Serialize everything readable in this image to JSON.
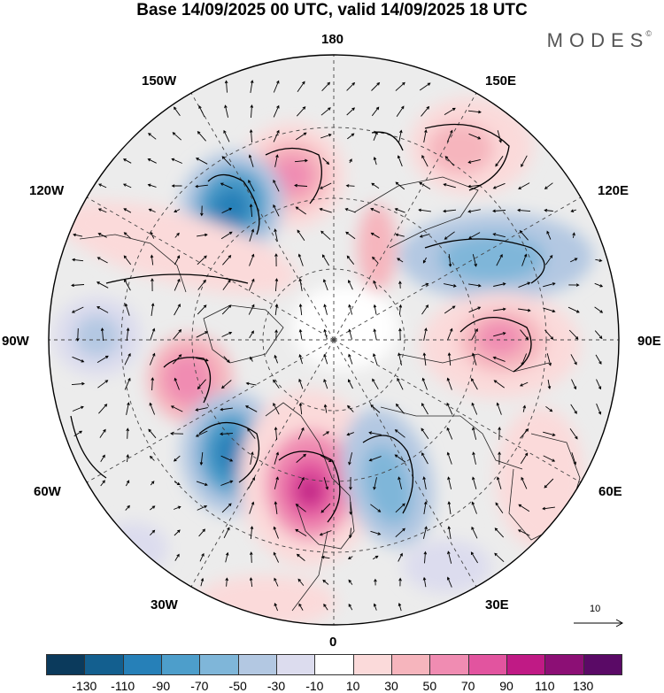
{
  "title": "Base 14/09/2025 00 UTC, valid 14/09/2025 18 UTC",
  "brand": "MODES",
  "brand_mark": "©",
  "longitude_labels": {
    "top": "180",
    "bottom": "0",
    "left": "90W",
    "right": "90E",
    "w150": "150W",
    "e150": "150E",
    "w120": "120W",
    "e120": "120E",
    "w60": "60W",
    "e60": "60E",
    "w30": "30W",
    "e30": "30E"
  },
  "reference_vector": "10",
  "colorbar": {
    "ticks": [
      "-130",
      "-110",
      "-90",
      "-70",
      "-50",
      "-30",
      "-10",
      "10",
      "30",
      "50",
      "70",
      "90",
      "110",
      "130"
    ],
    "colors": [
      "#0b3a5c",
      "#135f8f",
      "#2680b8",
      "#4d9ecb",
      "#7fb6d9",
      "#b3c8e2",
      "#dcdcee",
      "#ffffff",
      "#fbdada",
      "#f6b5bd",
      "#f08cb2",
      "#e2549f",
      "#c01a85",
      "#8c0f75",
      "#5a0a66"
    ]
  },
  "anomalies": [
    {
      "name": "pos-north-center",
      "value": 60
    },
    {
      "name": "neg-northwest",
      "value": -90
    },
    {
      "name": "pos-northeast",
      "value": 30
    },
    {
      "name": "neg-east",
      "value": -70
    },
    {
      "name": "pos-east",
      "value": 60
    },
    {
      "name": "pos-west",
      "value": 60
    },
    {
      "name": "neg-west",
      "value": -30
    },
    {
      "name": "neg-southwest",
      "value": -90
    },
    {
      "name": "pos-south",
      "value": 100
    },
    {
      "name": "neg-south-east",
      "value": -70
    },
    {
      "name": "pos-southeast",
      "value": 30
    }
  ]
}
